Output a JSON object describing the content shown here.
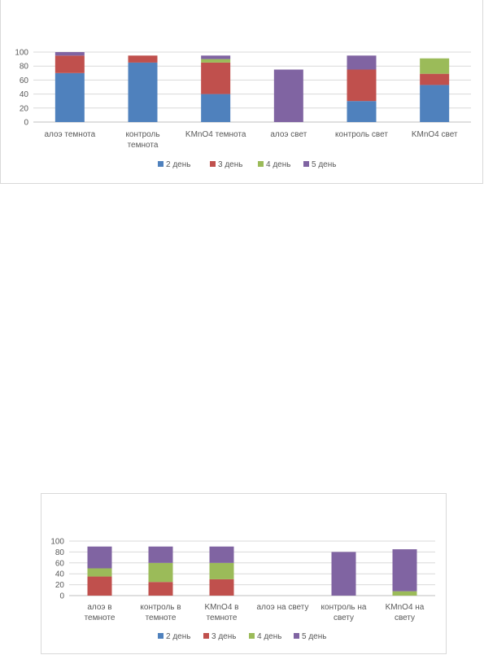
{
  "charts": [
    {
      "type": "bar",
      "stacked": true,
      "categories": [
        "алоэ темнота",
        "контроль темнота",
        "KMnO4 темнота",
        "алоэ свет",
        "контроль свет",
        "KMnO4 свет"
      ],
      "series": [
        {
          "name": "2 день",
          "color": "#4f81bd",
          "values": [
            70,
            85,
            40,
            0,
            30,
            53
          ]
        },
        {
          "name": "3 день",
          "color": "#c0504d",
          "values": [
            25,
            10,
            45,
            0,
            45,
            16
          ]
        },
        {
          "name": "4 день",
          "color": "#9bbb59",
          "values": [
            0,
            0,
            5,
            0,
            0,
            22
          ]
        },
        {
          "name": "5 день",
          "color": "#8064a2",
          "values": [
            5,
            0,
            5,
            75,
            20,
            0
          ]
        }
      ],
      "yticks": [
        0,
        20,
        40,
        60,
        80,
        100
      ],
      "ylim": [
        0,
        100
      ],
      "grid": true,
      "legend": "bottom"
    },
    {
      "type": "bar",
      "stacked": true,
      "categories": [
        "алоэ в темноте",
        "контроль в темноте",
        "KMnO4 в темноте",
        "алоэ на свету",
        "контроль на свету",
        "KMnO4 на свету"
      ],
      "series": [
        {
          "name": "2 день",
          "color": "#4f81bd",
          "values": [
            0,
            0,
            0,
            0,
            0,
            0
          ]
        },
        {
          "name": "3 день",
          "color": "#c0504d",
          "values": [
            35,
            25,
            30,
            0,
            0,
            0
          ]
        },
        {
          "name": "4 день",
          "color": "#9bbb59",
          "values": [
            15,
            35,
            30,
            0,
            0,
            8
          ]
        },
        {
          "name": "5 день",
          "color": "#8064a2",
          "values": [
            40,
            30,
            30,
            0,
            80,
            77
          ]
        }
      ],
      "yticks": [
        0,
        20,
        40,
        60,
        80,
        100
      ],
      "ylim": [
        0,
        100
      ],
      "grid": true,
      "legend": "bottom"
    }
  ]
}
